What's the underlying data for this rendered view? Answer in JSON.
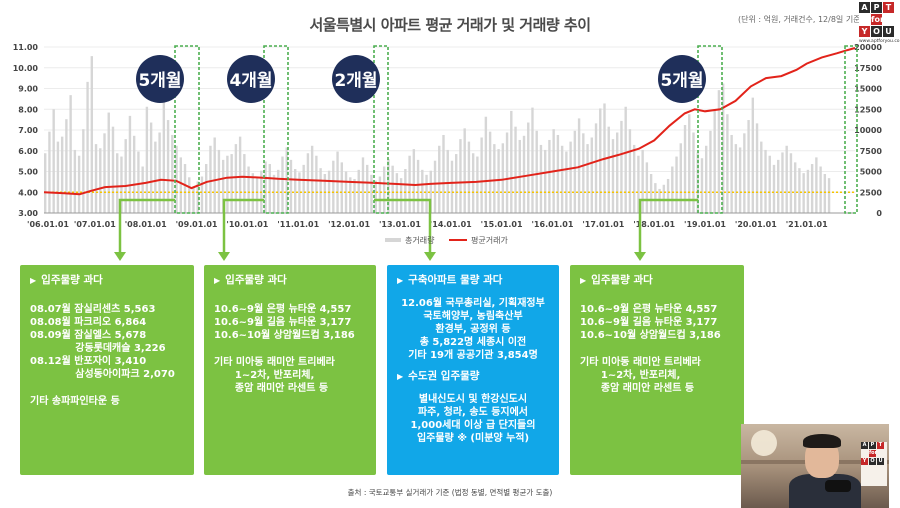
{
  "title": "서울특별시 아파트 평균 거래가 및 거래량 추이",
  "unit_note": "(단위 : 억원, 거래건수, 12/8일 기준)",
  "logo": {
    "cells": [
      {
        "t": "A",
        "c": "dark"
      },
      {
        "t": "P",
        "c": "dark"
      },
      {
        "t": "T",
        "c": "red"
      },
      {
        "t": "",
        "c": ""
      },
      {
        "t": "for",
        "c": "red"
      },
      {
        "t": "",
        "c": ""
      },
      {
        "t": "Y",
        "c": "red"
      },
      {
        "t": "O",
        "c": "dark"
      },
      {
        "t": "U",
        "c": "dark"
      }
    ],
    "site": "www.aptforyou.co.kr"
  },
  "chart_data": {
    "type": "line",
    "x_ticks": [
      "'06.01.01",
      "'07.01.01",
      "'08.01.01",
      "'09.01.01",
      "'10.01.01",
      "'11.01.01",
      "'12.01.01",
      "'13.01.01",
      "'14.01.01",
      "'15.01.01",
      "'16.01.01",
      "'17.01.01",
      "'18.01.01",
      "'19.01.01",
      "'20.01.01",
      "'21.01.01"
    ],
    "y_left_ticks": [
      "3.00",
      "4.00",
      "5.00",
      "6.00",
      "7.00",
      "8.00",
      "9.00",
      "10.00",
      "11.00"
    ],
    "y_right_ticks": [
      "0",
      "2500",
      "5000",
      "7500",
      "10000",
      "12500",
      "15000",
      "17500",
      "20000"
    ],
    "ylim_left": [
      3,
      11
    ],
    "ylim_right": [
      0,
      20000
    ],
    "xlim": [
      2006.0,
      2021.95
    ],
    "legend": [
      "총거래량",
      "평균거래가"
    ],
    "legend_position": "bottom",
    "reference_line": {
      "value": 4.0,
      "color": "#f5c400",
      "style": "dotted"
    },
    "series": [
      {
        "name": "평균거래가",
        "color": "#e2231a",
        "x": [
          2006.0,
          2006.4,
          2006.7,
          2006.9,
          2007.2,
          2007.6,
          2008.0,
          2008.3,
          2008.6,
          2008.9,
          2009.2,
          2009.6,
          2009.9,
          2010.3,
          2010.6,
          2011.0,
          2011.5,
          2012.0,
          2012.5,
          2012.9,
          2013.3,
          2013.6,
          2014.0,
          2014.5,
          2015.0,
          2015.5,
          2016.0,
          2016.5,
          2017.0,
          2017.3,
          2017.7,
          2018.0,
          2018.3,
          2018.6,
          2018.8,
          2019.0,
          2019.3,
          2019.6,
          2019.9,
          2020.2,
          2020.5,
          2020.8,
          2021.0,
          2021.3,
          2021.6,
          2021.8,
          2021.95
        ],
        "y": [
          4.0,
          3.95,
          3.9,
          4.05,
          4.25,
          4.3,
          4.45,
          4.6,
          4.55,
          4.2,
          4.5,
          4.7,
          4.75,
          4.7,
          4.65,
          4.6,
          4.55,
          4.5,
          4.45,
          4.4,
          4.35,
          4.4,
          4.45,
          4.5,
          4.6,
          4.8,
          5.0,
          5.2,
          5.6,
          5.8,
          6.1,
          6.5,
          7.2,
          7.8,
          8.0,
          7.9,
          8.0,
          8.4,
          9.1,
          9.5,
          9.6,
          9.9,
          10.2,
          10.5,
          10.7,
          10.85,
          10.95
        ]
      },
      {
        "name": "총거래량",
        "color": "#d6d6d6",
        "type": "bar",
        "monthly_start": 2006.0,
        "values": [
          7200,
          9800,
          12500,
          8600,
          9200,
          11300,
          14200,
          7600,
          6900,
          10100,
          15800,
          18900,
          8300,
          7800,
          9600,
          12100,
          10400,
          7200,
          6800,
          8900,
          11700,
          9300,
          7400,
          5600,
          12800,
          10900,
          8600,
          9700,
          14100,
          11200,
          9400,
          8100,
          6700,
          5900,
          4300,
          3100,
          3800,
          4400,
          5900,
          8100,
          9100,
          7600,
          6400,
          6900,
          7100,
          8300,
          9200,
          7100,
          5600,
          4800,
          4300,
          5100,
          6200,
          5900,
          4600,
          5200,
          6800,
          7900,
          6400,
          5300,
          4900,
          5800,
          7200,
          8100,
          6900,
          5400,
          4700,
          5100,
          6300,
          7400,
          6100,
          5000,
          4300,
          4100,
          5200,
          6700,
          5800,
          4600,
          3900,
          4400,
          5600,
          6500,
          5700,
          4800,
          4200,
          5300,
          6900,
          7700,
          6400,
          5200,
          4600,
          5100,
          6300,
          8100,
          9400,
          7600,
          6300,
          7100,
          8900,
          10200,
          8600,
          7200,
          6800,
          9100,
          11600,
          9800,
          8300,
          7700,
          8400,
          9700,
          12300,
          10400,
          8800,
          9300,
          10900,
          12700,
          9900,
          8200,
          7600,
          8800,
          10100,
          9400,
          8100,
          7400,
          8600,
          9900,
          11400,
          9600,
          8300,
          9100,
          10800,
          12600,
          13200,
          10400,
          8900,
          9700,
          11100,
          12800,
          10100,
          8200,
          6900,
          7600,
          6100,
          4700,
          3600,
          2900,
          3400,
          4100,
          5600,
          6800,
          8400,
          10600,
          11900,
          9700,
          7300,
          6600,
          8100,
          9900,
          12400,
          14800,
          15600,
          11900,
          9400,
          8300,
          7900,
          9600,
          11200,
          13900,
          10800,
          8600,
          7600,
          6900,
          5800,
          6400,
          7300,
          8100,
          7200,
          6100,
          5400,
          4800,
          5200,
          5900,
          6700,
          5600,
          4700,
          4200
        ]
      }
    ]
  },
  "callouts": [
    {
      "label": "5개월"
    },
    {
      "label": "4개월"
    },
    {
      "label": "2개월"
    },
    {
      "label": "5개월"
    }
  ],
  "boxes": [
    {
      "title": "입주물량 과다",
      "lines": [
        "08.07월 잠실리센츠 5,563",
        "08.08월 파크리오 6,864",
        "08.09월 잠실엘스 5,678",
        "             강동롯데캐슬 3,226",
        "08.12월 반포자이 3,410",
        "             삼성동아이파크 2,070"
      ],
      "extra": [
        "기타 송파파인타운 등"
      ]
    },
    {
      "title": "입주물량 과다",
      "lines": [
        "10.6~9월 은평 뉴타운 4,557",
        "10.6~9월 길음 뉴타운 3,177",
        "10.6~10월 상암월드컵 3,186"
      ],
      "extra": [
        "기타 미아동 래미안 트리베라",
        "      1~2차, 반포리체,",
        "      종암 래미안 라센트 등"
      ]
    },
    {
      "title": "구축아파트 물량 과다",
      "lines": [
        "12.06월 국무총리실, 기획재정부",
        "국토해양부, 농림축산부",
        "환경부, 공정위 등",
        "총 5,822명 세종시 이전",
        "기타 19개 공공기관 3,854명"
      ],
      "subtitle": "수도권 입주물량",
      "extra": [
        "별내신도시 및 한강신도시",
        "파주, 청라, 송도 등지에서",
        "1,000세대 이상 급 단지들의",
        "입주물량 ※ (미분양 누적)"
      ]
    },
    {
      "title": "입주물량 과다",
      "lines": [
        "10.6~9월 은평 뉴타운 4,557",
        "10.6~9월 길음 뉴타운 3,177",
        "10.6~10월 상암월드컵 3,186"
      ],
      "extra": [
        "기타 미아동 래미안 트리베라",
        "      1~2차, 반포리체,",
        "      종암 래미안 라센트 등"
      ]
    }
  ],
  "source_note": "출처 : 국토교통부 실거래가 기준 (법정 동별, 면적별 평균가 도출)",
  "colors": {
    "green": "#7cc242",
    "blue": "#11a7e8",
    "callout_circle": "#1f2f5a",
    "arrow": "#7cc242",
    "dashed_box": "#4caf50"
  }
}
